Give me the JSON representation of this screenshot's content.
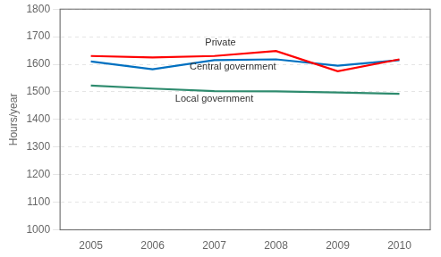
{
  "chart_data": {
    "type": "line",
    "ylabel": "Hours/year",
    "x": [
      2005,
      2006,
      2007,
      2008,
      2009,
      2010
    ],
    "series": [
      {
        "name": "Private",
        "color": "#ff0000",
        "values": [
          1630,
          1625,
          1630,
          1648,
          1575,
          1618
        ]
      },
      {
        "name": "Central government",
        "color": "#0070c0",
        "values": [
          1610,
          1582,
          1615,
          1618,
          1595,
          1615
        ]
      },
      {
        "name": "Local government",
        "color": "#2e8b6e",
        "values": [
          1523,
          1512,
          1503,
          1502,
          1498,
          1493
        ]
      }
    ],
    "annotations": [
      {
        "text": "Private",
        "x": 2007.1,
        "y": 1660
      },
      {
        "text": "Central government",
        "x": 2007.3,
        "y": 1572
      },
      {
        "text": "Local government",
        "x": 2007.0,
        "y": 1455
      }
    ],
    "xlim": [
      2004.5,
      2010.5
    ],
    "xticks": [
      2005,
      2006,
      2007,
      2008,
      2009,
      2010
    ],
    "ylim": [
      1000,
      1800
    ],
    "yticks": [
      1000,
      1100,
      1200,
      1300,
      1400,
      1500,
      1600,
      1700,
      1800
    ],
    "grid": "y"
  }
}
